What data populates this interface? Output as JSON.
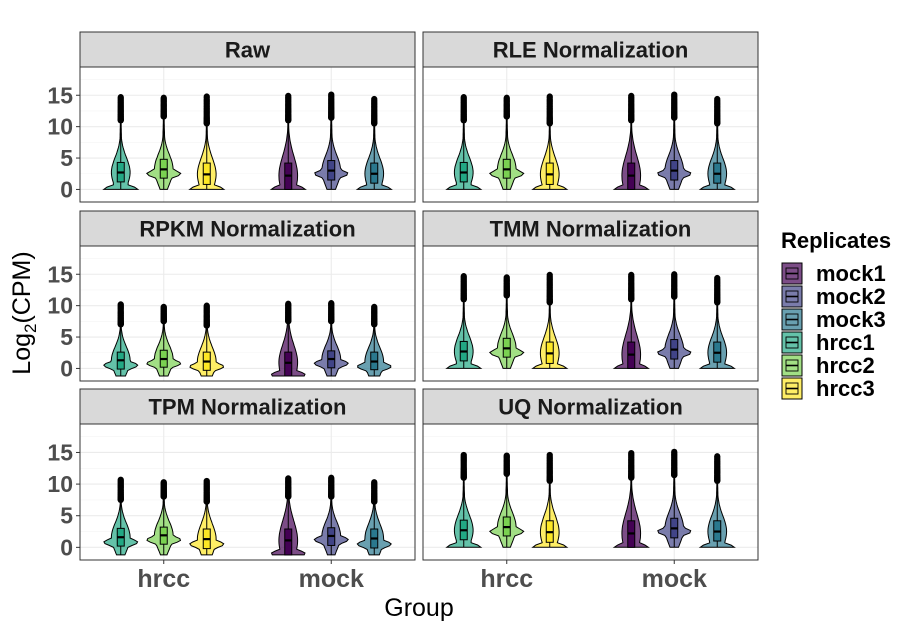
{
  "chart_data": {
    "type": "violin",
    "ylabel_main": "Log",
    "ylabel_sub": "2",
    "ylabel_tail": "(CPM)",
    "xlabel": "Group",
    "categories": [
      "hrcc",
      "mock"
    ],
    "ylim": [
      -2,
      19.5
    ],
    "yticks": [
      0,
      5,
      10,
      15
    ],
    "grid": true,
    "legend": {
      "title": "Replicates",
      "placement": "right",
      "items": [
        {
          "name": "mock1",
          "color": "#440154"
        },
        {
          "name": "mock2",
          "color": "#414487"
        },
        {
          "name": "mock3",
          "color": "#2A788E"
        },
        {
          "name": "hrcc1",
          "color": "#22A884"
        },
        {
          "name": "hrcc2",
          "color": "#7AD151"
        },
        {
          "name": "hrcc3",
          "color": "#FDE725"
        }
      ]
    },
    "panels": [
      {
        "title": "Raw",
        "series": [
          {
            "name": "hrcc1",
            "group": "hrcc",
            "min": 0,
            "q1": 1.2,
            "median": 2.7,
            "q3": 4.3,
            "whisker_hi": 11.0,
            "max": 14.7,
            "peak": 0
          },
          {
            "name": "hrcc2",
            "group": "hrcc",
            "min": 0,
            "q1": 1.8,
            "median": 3.2,
            "q3": 4.8,
            "whisker_hi": 11.6,
            "max": 14.6,
            "peak": 2.5
          },
          {
            "name": "hrcc3",
            "group": "hrcc",
            "min": 0,
            "q1": 0.8,
            "median": 2.4,
            "q3": 4.2,
            "whisker_hi": 10.5,
            "max": 14.8,
            "peak": 0
          },
          {
            "name": "mock1",
            "group": "mock",
            "min": 0,
            "q1": 0,
            "median": 2.2,
            "q3": 4.2,
            "whisker_hi": 11.0,
            "max": 14.9,
            "peak": 0
          },
          {
            "name": "mock2",
            "group": "mock",
            "min": 0,
            "q1": 1.5,
            "median": 3.0,
            "q3": 4.6,
            "whisker_hi": 11.4,
            "max": 15.1,
            "peak": 2.5
          },
          {
            "name": "mock3",
            "group": "mock",
            "min": 0,
            "q1": 1.0,
            "median": 2.5,
            "q3": 4.2,
            "whisker_hi": 10.5,
            "max": 14.4,
            "peak": 0
          }
        ]
      },
      {
        "title": "RLE Normalization",
        "series": [
          {
            "name": "hrcc1",
            "group": "hrcc",
            "min": 0,
            "q1": 1.2,
            "median": 2.7,
            "q3": 4.3,
            "whisker_hi": 11.0,
            "max": 14.7,
            "peak": 0
          },
          {
            "name": "hrcc2",
            "group": "hrcc",
            "min": 0,
            "q1": 1.8,
            "median": 3.2,
            "q3": 4.8,
            "whisker_hi": 11.6,
            "max": 14.6,
            "peak": 2.5
          },
          {
            "name": "hrcc3",
            "group": "hrcc",
            "min": 0,
            "q1": 0.8,
            "median": 2.4,
            "q3": 4.2,
            "whisker_hi": 10.5,
            "max": 14.8,
            "peak": 0
          },
          {
            "name": "mock1",
            "group": "mock",
            "min": 0,
            "q1": 0,
            "median": 2.2,
            "q3": 4.2,
            "whisker_hi": 11.0,
            "max": 14.9,
            "peak": 0
          },
          {
            "name": "mock2",
            "group": "mock",
            "min": 0,
            "q1": 1.5,
            "median": 3.0,
            "q3": 4.6,
            "whisker_hi": 11.4,
            "max": 15.1,
            "peak": 2.5
          },
          {
            "name": "mock3",
            "group": "mock",
            "min": 0,
            "q1": 1.0,
            "median": 2.5,
            "q3": 4.2,
            "whisker_hi": 10.5,
            "max": 14.4,
            "peak": 0
          }
        ]
      },
      {
        "title": "RPKM Normalization",
        "series": [
          {
            "name": "hrcc1",
            "group": "hrcc",
            "min": -1.2,
            "q1": -0.1,
            "median": 1.3,
            "q3": 2.6,
            "whisker_hi": 7.0,
            "max": 10.2,
            "peak": 0.5
          },
          {
            "name": "hrcc2",
            "group": "hrcc",
            "min": -1.2,
            "q1": 0.2,
            "median": 1.5,
            "q3": 2.9,
            "whisker_hi": 7.5,
            "max": 9.8,
            "peak": 0.8
          },
          {
            "name": "hrcc3",
            "group": "hrcc",
            "min": -1.2,
            "q1": -0.3,
            "median": 1.1,
            "q3": 2.6,
            "whisker_hi": 6.8,
            "max": 10.0,
            "peak": 0.3
          },
          {
            "name": "mock1",
            "group": "mock",
            "min": -1.2,
            "q1": -1.2,
            "median": 0.9,
            "q3": 2.6,
            "whisker_hi": 7.5,
            "max": 10.3,
            "peak": -1.0
          },
          {
            "name": "mock2",
            "group": "mock",
            "min": -1.2,
            "q1": 0.1,
            "median": 1.5,
            "q3": 2.8,
            "whisker_hi": 7.5,
            "max": 10.4,
            "peak": 0.8
          },
          {
            "name": "mock3",
            "group": "mock",
            "min": -1.2,
            "q1": -0.2,
            "median": 1.1,
            "q3": 2.6,
            "whisker_hi": 7.0,
            "max": 9.8,
            "peak": 0.3
          }
        ]
      },
      {
        "title": "TMM Normalization",
        "series": [
          {
            "name": "hrcc1",
            "group": "hrcc",
            "min": 0,
            "q1": 1.2,
            "median": 2.7,
            "q3": 4.3,
            "whisker_hi": 11.0,
            "max": 14.7,
            "peak": 0
          },
          {
            "name": "hrcc2",
            "group": "hrcc",
            "min": 0,
            "q1": 1.8,
            "median": 3.2,
            "q3": 4.8,
            "whisker_hi": 11.6,
            "max": 14.5,
            "peak": 2.5
          },
          {
            "name": "hrcc3",
            "group": "hrcc",
            "min": 0,
            "q1": 0.8,
            "median": 2.4,
            "q3": 4.2,
            "whisker_hi": 10.5,
            "max": 14.9,
            "peak": 0
          },
          {
            "name": "mock1",
            "group": "mock",
            "min": 0,
            "q1": 0,
            "median": 2.2,
            "q3": 4.2,
            "whisker_hi": 11.0,
            "max": 14.9,
            "peak": 0
          },
          {
            "name": "mock2",
            "group": "mock",
            "min": 0,
            "q1": 1.5,
            "median": 3.0,
            "q3": 4.6,
            "whisker_hi": 11.4,
            "max": 15.0,
            "peak": 2.5
          },
          {
            "name": "mock3",
            "group": "mock",
            "min": 0,
            "q1": 1.0,
            "median": 2.5,
            "q3": 4.2,
            "whisker_hi": 10.5,
            "max": 14.4,
            "peak": 0
          }
        ]
      },
      {
        "title": "TPM Normalization",
        "series": [
          {
            "name": "hrcc1",
            "group": "hrcc",
            "min": -1.2,
            "q1": 0.2,
            "median": 1.6,
            "q3": 3.0,
            "whisker_hi": 7.5,
            "max": 10.7,
            "peak": 0.8
          },
          {
            "name": "hrcc2",
            "group": "hrcc",
            "min": -1.2,
            "q1": 0.5,
            "median": 1.9,
            "q3": 3.2,
            "whisker_hi": 8.0,
            "max": 10.3,
            "peak": 1.2
          },
          {
            "name": "hrcc3",
            "group": "hrcc",
            "min": -1.2,
            "q1": -0.2,
            "median": 1.3,
            "q3": 2.9,
            "whisker_hi": 7.2,
            "max": 10.5,
            "peak": 0.5
          },
          {
            "name": "mock1",
            "group": "mock",
            "min": -1.2,
            "q1": -1.2,
            "median": 1.1,
            "q3": 2.9,
            "whisker_hi": 8.0,
            "max": 10.9,
            "peak": -1.0
          },
          {
            "name": "mock2",
            "group": "mock",
            "min": -1.2,
            "q1": 0.3,
            "median": 1.8,
            "q3": 3.1,
            "whisker_hi": 8.0,
            "max": 11.0,
            "peak": 1.2
          },
          {
            "name": "mock3",
            "group": "mock",
            "min": -1.2,
            "q1": -0.1,
            "median": 1.4,
            "q3": 2.9,
            "whisker_hi": 7.2,
            "max": 10.3,
            "peak": 0.5
          }
        ]
      },
      {
        "title": "UQ Normalization",
        "series": [
          {
            "name": "hrcc1",
            "group": "hrcc",
            "min": 0,
            "q1": 1.2,
            "median": 2.7,
            "q3": 4.3,
            "whisker_hi": 11.0,
            "max": 14.6,
            "peak": 0
          },
          {
            "name": "hrcc2",
            "group": "hrcc",
            "min": 0,
            "q1": 1.8,
            "median": 3.2,
            "q3": 4.8,
            "whisker_hi": 11.6,
            "max": 14.5,
            "peak": 2.5
          },
          {
            "name": "hrcc3",
            "group": "hrcc",
            "min": 0,
            "q1": 0.8,
            "median": 2.4,
            "q3": 4.2,
            "whisker_hi": 10.5,
            "max": 14.6,
            "peak": 0
          },
          {
            "name": "mock1",
            "group": "mock",
            "min": 0,
            "q1": 0,
            "median": 2.2,
            "q3": 4.2,
            "whisker_hi": 11.0,
            "max": 14.9,
            "peak": 0
          },
          {
            "name": "mock2",
            "group": "mock",
            "min": 0,
            "q1": 1.5,
            "median": 3.0,
            "q3": 4.6,
            "whisker_hi": 11.4,
            "max": 15.1,
            "peak": 2.5
          },
          {
            "name": "mock3",
            "group": "mock",
            "min": 0,
            "q1": 1.0,
            "median": 2.5,
            "q3": 4.2,
            "whisker_hi": 10.5,
            "max": 14.4,
            "peak": 0
          }
        ]
      }
    ]
  }
}
